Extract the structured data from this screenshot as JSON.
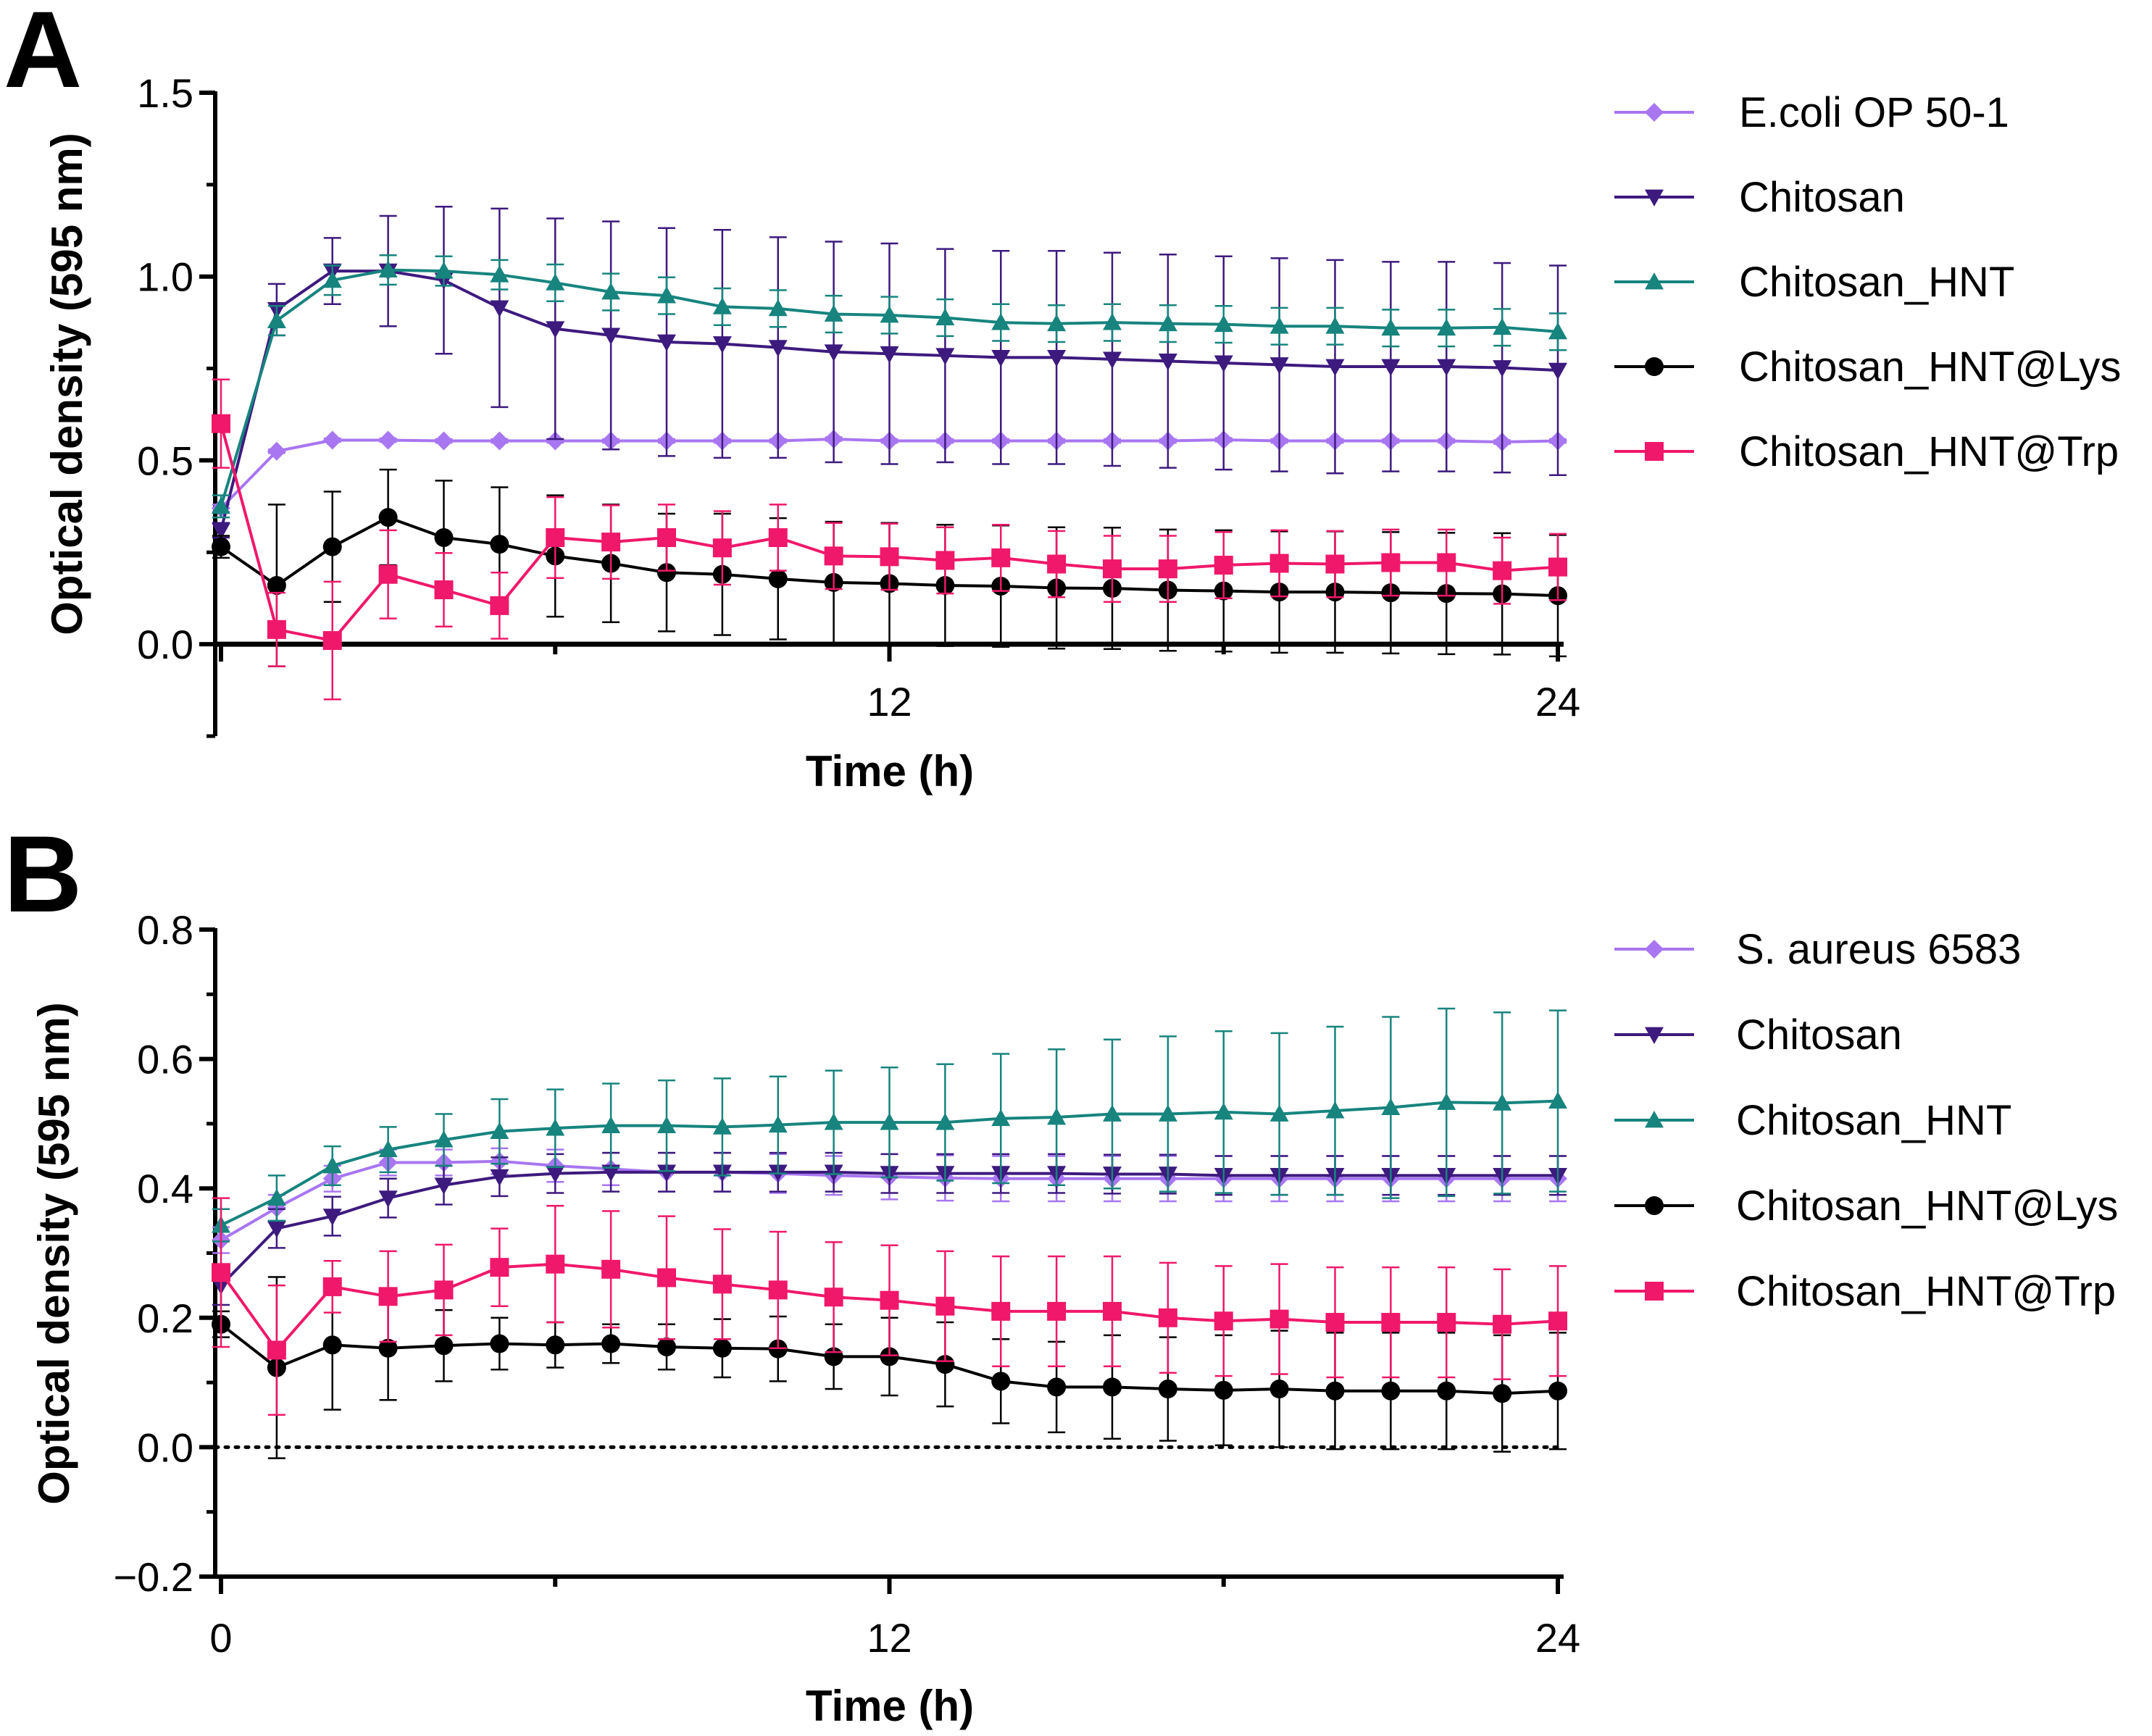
{
  "colors": {
    "strain": "#A876F0",
    "chitosan": "#3D1A7E",
    "chitosan_hnt": "#17847E",
    "chitosan_hnt_lys": "#000000",
    "chitosan_hnt_trp": "#F0186A"
  },
  "chart_data": [
    {
      "type": "line",
      "panel": "A",
      "xlabel": "Time (h)",
      "ylabel": "Optical density (595 nm)",
      "xlim": [
        0,
        24
      ],
      "ylim": [
        -0.25,
        1.5
      ],
      "xticks": [
        12,
        24
      ],
      "yticks": [
        0.0,
        0.5,
        1.0,
        1.5
      ],
      "ytick_labels": [
        "0.0",
        "0.5",
        "1.0",
        "1.5"
      ],
      "zero_line": "solid",
      "legend_position": "right",
      "x": [
        0,
        1,
        2,
        3,
        4,
        5,
        6,
        7,
        8,
        9,
        10,
        11,
        12,
        13,
        14,
        15,
        16,
        17,
        18,
        19,
        20,
        21,
        22,
        23,
        24
      ],
      "series": [
        {
          "name": "E.coli OP 50-1",
          "color_key": "strain",
          "marker": "diamond",
          "values": [
            0.37,
            0.525,
            0.555,
            0.555,
            0.553,
            0.553,
            0.553,
            0.553,
            0.553,
            0.553,
            0.553,
            0.558,
            0.553,
            0.553,
            0.553,
            0.553,
            0.553,
            0.553,
            0.556,
            0.553,
            0.553,
            0.553,
            0.553,
            0.55,
            0.553
          ],
          "errors": [
            0.01,
            0.005,
            0.005,
            0.005,
            0.005,
            0.005,
            0.005,
            0.005,
            0.005,
            0.005,
            0.005,
            0.005,
            0.005,
            0.005,
            0.005,
            0.005,
            0.005,
            0.005,
            0.005,
            0.005,
            0.005,
            0.005,
            0.005,
            0.005,
            0.005
          ]
        },
        {
          "name": "Chitosan",
          "color_key": "chitosan",
          "marker": "triangle-down",
          "values": [
            0.31,
            0.91,
            1.015,
            1.015,
            0.99,
            0.915,
            0.858,
            0.84,
            0.822,
            0.817,
            0.807,
            0.795,
            0.79,
            0.785,
            0.78,
            0.78,
            0.775,
            0.77,
            0.765,
            0.76,
            0.755,
            0.755,
            0.755,
            0.752,
            0.745
          ],
          "errors": [
            0.02,
            0.07,
            0.09,
            0.15,
            0.2,
            0.27,
            0.3,
            0.31,
            0.31,
            0.31,
            0.3,
            0.3,
            0.3,
            0.29,
            0.29,
            0.29,
            0.29,
            0.29,
            0.29,
            0.29,
            0.29,
            0.285,
            0.285,
            0.285,
            0.285
          ]
        },
        {
          "name": "Chitosan_HNT",
          "color_key": "chitosan_hnt",
          "marker": "triangle-up",
          "values": [
            0.375,
            0.88,
            0.99,
            1.018,
            1.015,
            1.005,
            0.983,
            0.958,
            0.948,
            0.918,
            0.913,
            0.898,
            0.895,
            0.888,
            0.875,
            0.872,
            0.875,
            0.872,
            0.87,
            0.865,
            0.865,
            0.86,
            0.86,
            0.862,
            0.85
          ],
          "errors": [
            0.03,
            0.04,
            0.04,
            0.04,
            0.04,
            0.04,
            0.05,
            0.05,
            0.05,
            0.05,
            0.05,
            0.05,
            0.05,
            0.05,
            0.05,
            0.05,
            0.05,
            0.05,
            0.05,
            0.05,
            0.05,
            0.05,
            0.05,
            0.05,
            0.05
          ]
        },
        {
          "name": "Chitosan_HNT@Lys",
          "color_key": "chitosan_hnt_lys",
          "marker": "circle",
          "values": [
            0.265,
            0.16,
            0.265,
            0.345,
            0.29,
            0.272,
            0.24,
            0.22,
            0.195,
            0.19,
            0.178,
            0.168,
            0.165,
            0.16,
            0.158,
            0.153,
            0.152,
            0.147,
            0.145,
            0.142,
            0.142,
            0.14,
            0.138,
            0.137,
            0.132
          ],
          "errors": [
            0.03,
            0.22,
            0.15,
            0.13,
            0.155,
            0.155,
            0.165,
            0.16,
            0.16,
            0.165,
            0.165,
            0.165,
            0.165,
            0.165,
            0.165,
            0.165,
            0.165,
            0.165,
            0.165,
            0.165,
            0.165,
            0.165,
            0.165,
            0.165,
            0.165
          ]
        },
        {
          "name": "Chitosan_HNT@Trp",
          "color_key": "chitosan_hnt_trp",
          "marker": "square",
          "values": [
            0.6,
            0.04,
            0.01,
            0.19,
            0.148,
            0.105,
            0.29,
            0.278,
            0.29,
            0.262,
            0.29,
            0.24,
            0.238,
            0.228,
            0.235,
            0.218,
            0.205,
            0.205,
            0.215,
            0.22,
            0.218,
            0.222,
            0.222,
            0.2,
            0.21
          ],
          "errors": [
            0.12,
            0.1,
            0.16,
            0.12,
            0.1,
            0.09,
            0.11,
            0.1,
            0.09,
            0.1,
            0.09,
            0.09,
            0.09,
            0.09,
            0.09,
            0.09,
            0.09,
            0.09,
            0.09,
            0.09,
            0.09,
            0.09,
            0.09,
            0.09,
            0.09
          ]
        }
      ]
    },
    {
      "type": "line",
      "panel": "B",
      "xlabel": "Time (h)",
      "ylabel": "Optical density (595 nm)",
      "xlim": [
        0,
        24
      ],
      "ylim": [
        -0.2,
        0.8
      ],
      "xticks": [
        0,
        12,
        24
      ],
      "yticks": [
        -0.2,
        0.0,
        0.2,
        0.4,
        0.6,
        0.8
      ],
      "ytick_labels": [
        "−0.2",
        "0.0",
        "0.2",
        "0.4",
        "0.6",
        "0.8"
      ],
      "zero_line": "dotted",
      "legend_position": "right",
      "x": [
        0,
        1,
        2,
        3,
        4,
        5,
        6,
        7,
        8,
        9,
        10,
        11,
        12,
        13,
        14,
        15,
        16,
        17,
        18,
        19,
        20,
        21,
        22,
        23,
        24
      ],
      "series": [
        {
          "name": "S. aureus 6583",
          "color_key": "strain",
          "marker": "diamond",
          "values": [
            0.32,
            0.37,
            0.415,
            0.44,
            0.44,
            0.442,
            0.435,
            0.43,
            0.425,
            0.425,
            0.423,
            0.42,
            0.418,
            0.416,
            0.415,
            0.415,
            0.415,
            0.415,
            0.415,
            0.415,
            0.415,
            0.415,
            0.415,
            0.415,
            0.415
          ],
          "errors": [
            0.02,
            0.02,
            0.02,
            0.02,
            0.02,
            0.02,
            0.025,
            0.025,
            0.03,
            0.03,
            0.03,
            0.03,
            0.035,
            0.035,
            0.035,
            0.035,
            0.035,
            0.035,
            0.035,
            0.035,
            0.035,
            0.035,
            0.035,
            0.035,
            0.035
          ]
        },
        {
          "name": "Chitosan",
          "color_key": "chitosan",
          "marker": "triangle-down",
          "values": [
            0.25,
            0.338,
            0.357,
            0.385,
            0.405,
            0.418,
            0.423,
            0.425,
            0.425,
            0.425,
            0.425,
            0.425,
            0.423,
            0.423,
            0.423,
            0.423,
            0.422,
            0.422,
            0.42,
            0.42,
            0.42,
            0.42,
            0.42,
            0.42,
            0.42
          ],
          "errors": [
            0.03,
            0.03,
            0.03,
            0.03,
            0.03,
            0.03,
            0.03,
            0.03,
            0.03,
            0.03,
            0.03,
            0.03,
            0.03,
            0.03,
            0.03,
            0.03,
            0.03,
            0.03,
            0.03,
            0.03,
            0.03,
            0.03,
            0.03,
            0.03,
            0.03
          ]
        },
        {
          "name": "Chitosan_HNT",
          "color_key": "chitosan_hnt",
          "marker": "triangle-up",
          "values": [
            0.343,
            0.385,
            0.435,
            0.46,
            0.475,
            0.488,
            0.493,
            0.497,
            0.497,
            0.495,
            0.498,
            0.502,
            0.502,
            0.502,
            0.508,
            0.51,
            0.515,
            0.515,
            0.518,
            0.515,
            0.52,
            0.525,
            0.533,
            0.532,
            0.535
          ],
          "errors": [
            0.025,
            0.035,
            0.03,
            0.035,
            0.04,
            0.05,
            0.06,
            0.065,
            0.07,
            0.075,
            0.075,
            0.08,
            0.085,
            0.09,
            0.1,
            0.105,
            0.115,
            0.12,
            0.125,
            0.125,
            0.13,
            0.14,
            0.145,
            0.14,
            0.14
          ]
        },
        {
          "name": "Chitosan_HNT@Lys",
          "color_key": "chitosan_hnt_lys",
          "marker": "circle",
          "values": [
            0.19,
            0.123,
            0.158,
            0.153,
            0.157,
            0.16,
            0.158,
            0.16,
            0.155,
            0.153,
            0.152,
            0.14,
            0.14,
            0.128,
            0.102,
            0.093,
            0.093,
            0.09,
            0.088,
            0.09,
            0.087,
            0.087,
            0.087,
            0.083,
            0.087
          ],
          "errors": [
            0.02,
            0.14,
            0.1,
            0.08,
            0.055,
            0.04,
            0.035,
            0.03,
            0.035,
            0.045,
            0.05,
            0.05,
            0.06,
            0.065,
            0.065,
            0.07,
            0.08,
            0.08,
            0.085,
            0.09,
            0.09,
            0.09,
            0.09,
            0.09,
            0.09
          ]
        },
        {
          "name": "Chitosan_HNT@Trp",
          "color_key": "chitosan_hnt_trp",
          "marker": "square",
          "values": [
            0.27,
            0.15,
            0.248,
            0.233,
            0.243,
            0.278,
            0.283,
            0.275,
            0.262,
            0.252,
            0.243,
            0.232,
            0.227,
            0.218,
            0.21,
            0.21,
            0.21,
            0.2,
            0.195,
            0.198,
            0.193,
            0.193,
            0.193,
            0.19,
            0.195
          ],
          "errors": [
            0.115,
            0.1,
            0.04,
            0.07,
            0.07,
            0.06,
            0.09,
            0.09,
            0.095,
            0.085,
            0.09,
            0.085,
            0.085,
            0.085,
            0.085,
            0.085,
            0.085,
            0.085,
            0.085,
            0.085,
            0.085,
            0.085,
            0.085,
            0.085,
            0.085
          ]
        }
      ]
    }
  ]
}
